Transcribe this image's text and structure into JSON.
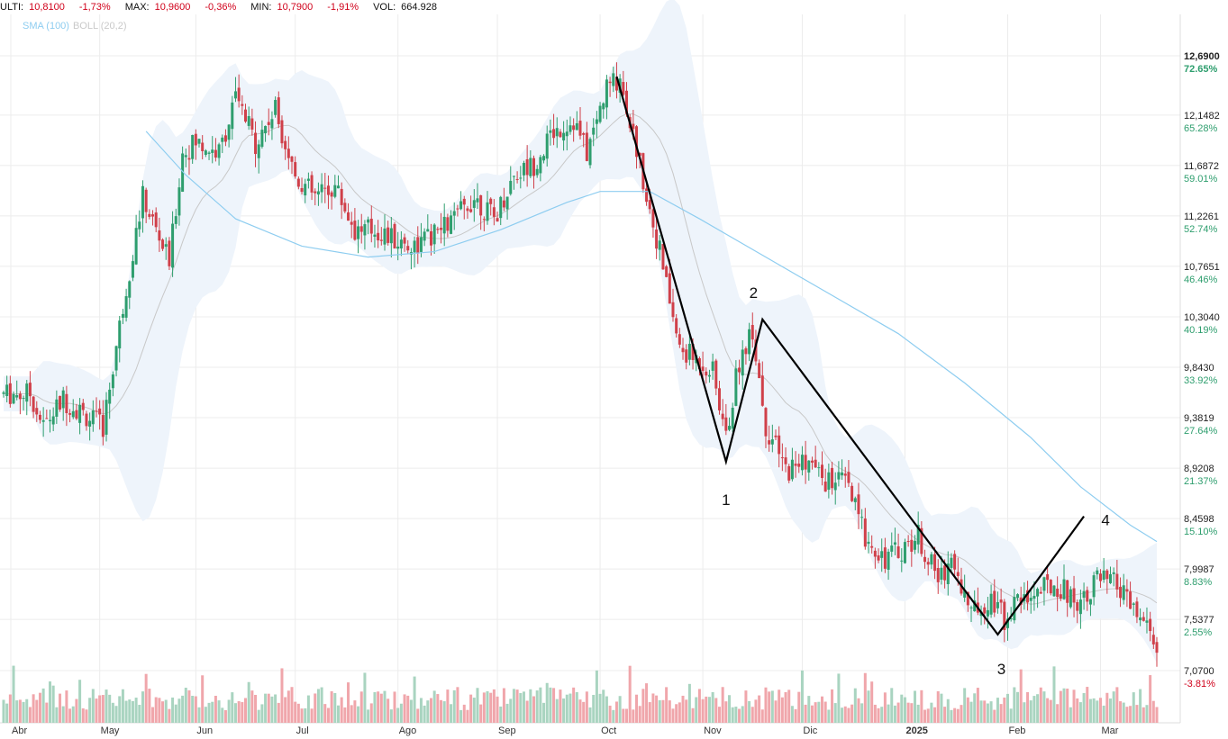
{
  "header": {
    "last_label": "ULTI:",
    "last_value": "10,8100",
    "last_change": "-1,73%",
    "max_label": "MAX:",
    "max_value": "10,9600",
    "max_change": "-0,36%",
    "min_label": "MIN:",
    "min_value": "10,7900",
    "min_change": "-1,91%",
    "vol_label": "VOL:",
    "vol_value": "664.928"
  },
  "legend": {
    "sma": "SMA (100)",
    "boll": "BOLL (20,2)"
  },
  "colors": {
    "up": "#2e9e6e",
    "down": "#d0404a",
    "sma": "#8ecdf0",
    "band": "#eef4fb",
    "mid": "#c8c8c8",
    "vol_up": "#a9d4c0",
    "vol_down": "#f0a6ab",
    "wave": "#000000"
  },
  "chart_data": {
    "type": "candlestick",
    "y_axis": {
      "ticks": [
        {
          "price": "12,6900",
          "pct": "72.65%"
        },
        {
          "price": "12,1482",
          "pct": "65.28%"
        },
        {
          "price": "11,6872",
          "pct": "59.01%"
        },
        {
          "price": "11,2261",
          "pct": "52.74%"
        },
        {
          "price": "10,7651",
          "pct": "46.46%"
        },
        {
          "price": "10,3040",
          "pct": "40.19%"
        },
        {
          "price": "9,8430",
          "pct": "33.92%"
        },
        {
          "price": "9,3819",
          "pct": "27.64%"
        },
        {
          "price": "8,9208",
          "pct": "21.37%"
        },
        {
          "price": "8,4598",
          "pct": "15.10%"
        },
        {
          "price": "7,9987",
          "pct": "8.83%"
        },
        {
          "price": "7,5377",
          "pct": "2.55%"
        },
        {
          "price": "7,0700",
          "pct": "-3.81%"
        }
      ],
      "range": [
        7.07,
        12.69
      ]
    },
    "x_axis": {
      "months": [
        "Abr",
        "May",
        "Jun",
        "Jul",
        "Ago",
        "Sep",
        "Oct",
        "Nov",
        "Dic",
        "2025",
        "Feb",
        "Mar"
      ]
    },
    "price_path": [
      {
        "day": 0,
        "price": 9.6
      },
      {
        "day": 8,
        "price": 9.6
      },
      {
        "day": 12,
        "price": 9.3
      },
      {
        "day": 18,
        "price": 9.55
      },
      {
        "day": 25,
        "price": 9.4
      },
      {
        "day": 30,
        "price": 9.3
      },
      {
        "day": 36,
        "price": 10.4
      },
      {
        "day": 42,
        "price": 11.4
      },
      {
        "day": 50,
        "price": 10.8
      },
      {
        "day": 54,
        "price": 11.8
      },
      {
        "day": 58,
        "price": 11.9
      },
      {
        "day": 65,
        "price": 11.8
      },
      {
        "day": 70,
        "price": 12.3
      },
      {
        "day": 76,
        "price": 11.9
      },
      {
        "day": 82,
        "price": 12.2
      },
      {
        "day": 88,
        "price": 11.6
      },
      {
        "day": 94,
        "price": 11.4
      },
      {
        "day": 100,
        "price": 11.5
      },
      {
        "day": 106,
        "price": 11.1
      },
      {
        "day": 112,
        "price": 11.1
      },
      {
        "day": 118,
        "price": 11.0
      },
      {
        "day": 124,
        "price": 10.95
      },
      {
        "day": 130,
        "price": 11.05
      },
      {
        "day": 136,
        "price": 11.2
      },
      {
        "day": 142,
        "price": 11.4
      },
      {
        "day": 148,
        "price": 11.2
      },
      {
        "day": 154,
        "price": 11.6
      },
      {
        "day": 160,
        "price": 11.7
      },
      {
        "day": 166,
        "price": 12.0
      },
      {
        "day": 172,
        "price": 12.1
      },
      {
        "day": 176,
        "price": 11.8
      },
      {
        "day": 182,
        "price": 12.4
      },
      {
        "day": 186,
        "price": 12.5
      },
      {
        "day": 192,
        "price": 11.7
      },
      {
        "day": 198,
        "price": 10.9
      },
      {
        "day": 204,
        "price": 10.0
      },
      {
        "day": 210,
        "price": 9.9
      },
      {
        "day": 214,
        "price": 9.8
      },
      {
        "day": 218,
        "price": 9.2
      },
      {
        "day": 222,
        "price": 9.9
      },
      {
        "day": 226,
        "price": 10.2
      },
      {
        "day": 230,
        "price": 9.3
      },
      {
        "day": 236,
        "price": 8.9
      },
      {
        "day": 242,
        "price": 9.0
      },
      {
        "day": 248,
        "price": 8.8
      },
      {
        "day": 254,
        "price": 8.8
      },
      {
        "day": 260,
        "price": 8.3
      },
      {
        "day": 266,
        "price": 8.1
      },
      {
        "day": 272,
        "price": 8.2
      },
      {
        "day": 276,
        "price": 8.3
      },
      {
        "day": 282,
        "price": 7.9
      },
      {
        "day": 286,
        "price": 8.1
      },
      {
        "day": 292,
        "price": 7.6
      },
      {
        "day": 298,
        "price": 7.75
      },
      {
        "day": 302,
        "price": 7.55
      },
      {
        "day": 306,
        "price": 7.7
      },
      {
        "day": 312,
        "price": 7.8
      },
      {
        "day": 318,
        "price": 7.85
      },
      {
        "day": 324,
        "price": 7.7
      },
      {
        "day": 330,
        "price": 7.9
      },
      {
        "day": 336,
        "price": 7.85
      },
      {
        "day": 340,
        "price": 7.65
      },
      {
        "day": 344,
        "price": 7.5
      },
      {
        "day": 348,
        "price": 7.3
      }
    ],
    "sma100": [
      {
        "day": 43,
        "price": 12.0
      },
      {
        "day": 55,
        "price": 11.6
      },
      {
        "day": 70,
        "price": 11.2
      },
      {
        "day": 90,
        "price": 10.95
      },
      {
        "day": 110,
        "price": 10.85
      },
      {
        "day": 130,
        "price": 10.9
      },
      {
        "day": 150,
        "price": 11.1
      },
      {
        "day": 170,
        "price": 11.35
      },
      {
        "day": 180,
        "price": 11.45
      },
      {
        "day": 195,
        "price": 11.45
      },
      {
        "day": 210,
        "price": 11.2
      },
      {
        "day": 230,
        "price": 10.85
      },
      {
        "day": 250,
        "price": 10.5
      },
      {
        "day": 270,
        "price": 10.15
      },
      {
        "day": 290,
        "price": 9.7
      },
      {
        "day": 310,
        "price": 9.2
      },
      {
        "day": 325,
        "price": 8.75
      },
      {
        "day": 340,
        "price": 8.4
      },
      {
        "day": 348,
        "price": 8.25
      }
    ],
    "wave_points": [
      {
        "label": "",
        "day": 185,
        "price": 12.5
      },
      {
        "label": "1",
        "day": 218,
        "price": 8.98
      },
      {
        "label": "2",
        "day": 229,
        "price": 10.28
      },
      {
        "label": "3",
        "day": 300,
        "price": 7.4
      },
      {
        "label": "4",
        "day": 326,
        "price": 8.48
      }
    ],
    "wave_labels": [
      "1",
      "2",
      "3",
      "4"
    ]
  }
}
